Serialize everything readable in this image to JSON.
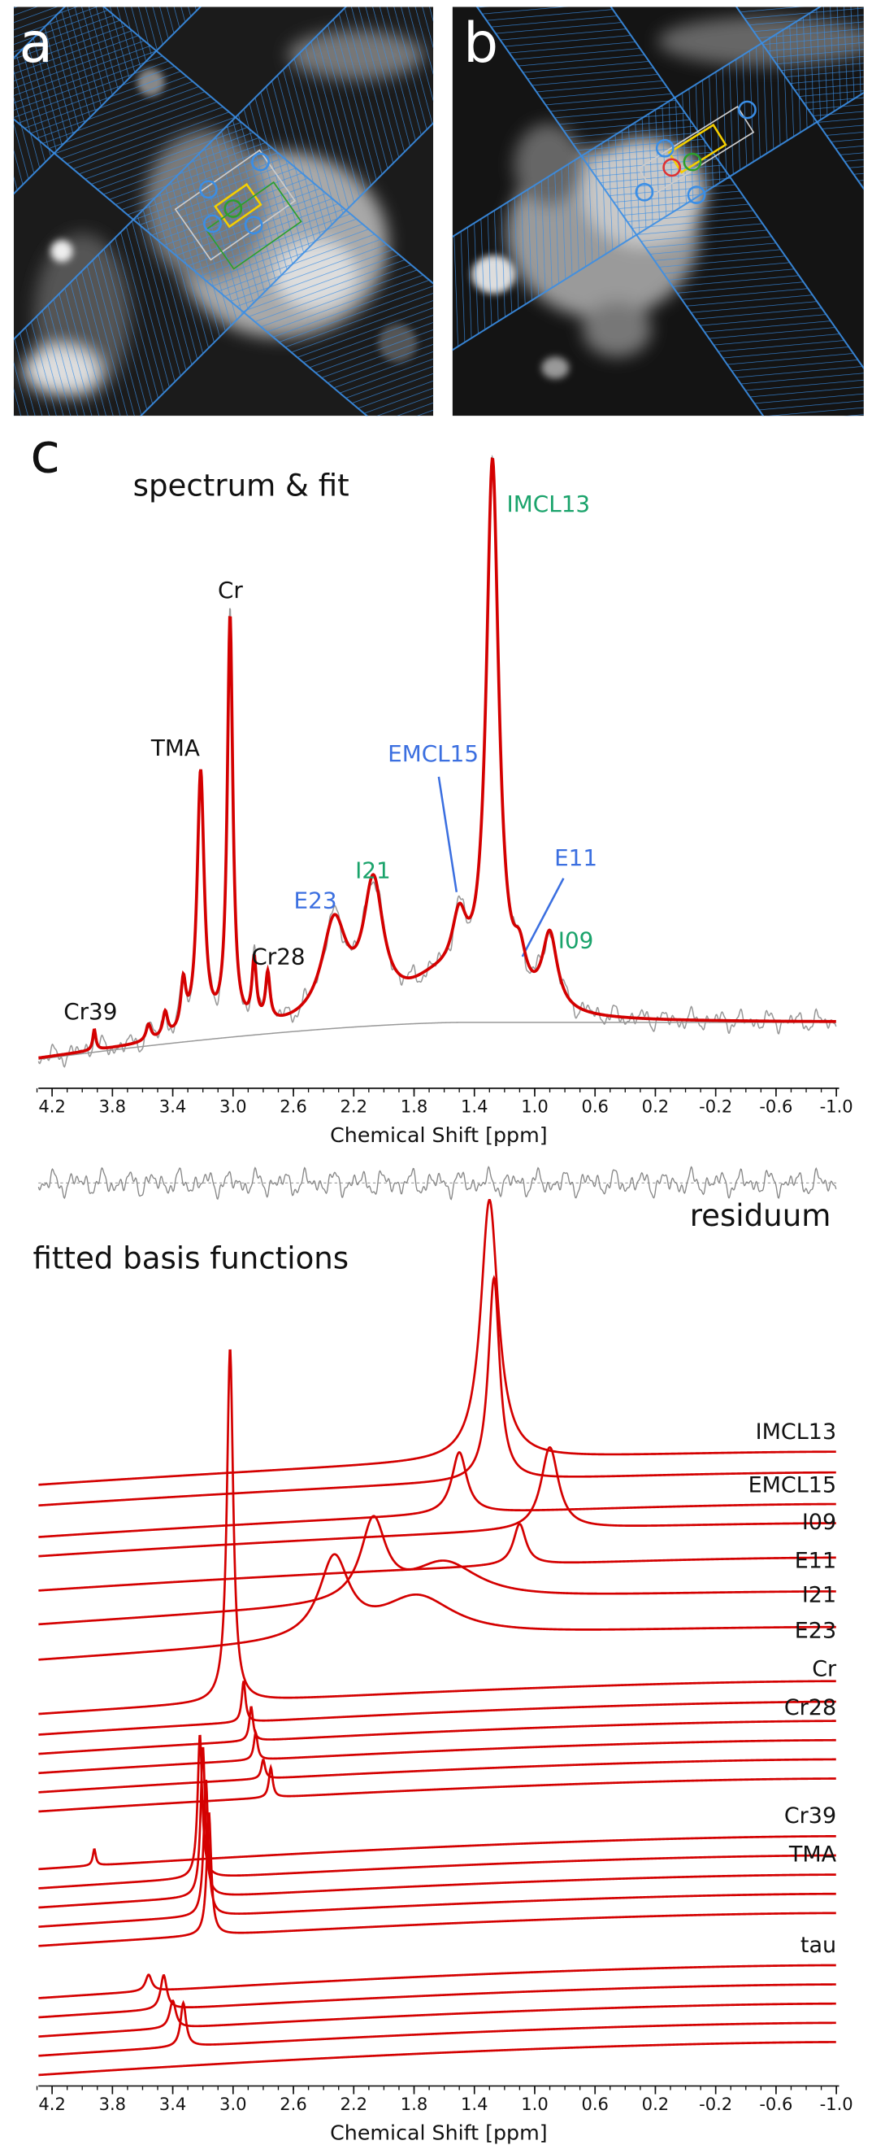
{
  "panels": {
    "a": "a",
    "b": "b",
    "c": "c"
  },
  "spectrum": {
    "title": "spectrum & fit",
    "peak_labels": [
      {
        "text": "IMCL13",
        "group": "imcl"
      },
      {
        "text": "Cr",
        "group": "other"
      },
      {
        "text": "TMA",
        "group": "other"
      },
      {
        "text": "EMCL15",
        "group": "emcl"
      },
      {
        "text": "E23",
        "group": "emcl"
      },
      {
        "text": "I21",
        "group": "imcl"
      },
      {
        "text": "E11",
        "group": "emcl"
      },
      {
        "text": "I09",
        "group": "imcl"
      },
      {
        "text": "Cr28",
        "group": "other"
      },
      {
        "text": "Cr39",
        "group": "other"
      }
    ],
    "group_colors": {
      "imcl": "#1aa36b",
      "emcl": "#3b6fe0",
      "other": "#111111"
    },
    "x_axis": {
      "label": "Chemical Shift [ppm]",
      "xlim": [
        4.2,
        -1.0
      ],
      "xticks": [
        4.2,
        3.8,
        3.4,
        {
          "value": 3,
          "label": "3.0"
        },
        2.6,
        2.2,
        1.8,
        1.4,
        {
          "value": 1,
          "label": "1.0"
        },
        0.6,
        0.2,
        -0.2,
        -0.6,
        {
          "value": -1,
          "label": "-1.0"
        }
      ]
    }
  },
  "residuum": "residuum",
  "basis": {
    "title": "fitted basis functions",
    "labels": [
      "IMCL13",
      "EMCL15",
      "I09",
      "E11",
      "I21",
      "E23",
      "Cr",
      "Cr28",
      "Cr39",
      "TMA",
      "tau"
    ],
    "x_axis": {
      "label": "Chemical Shift [ppm]",
      "xlim": [
        4.2,
        -1.0
      ],
      "xticks": [
        4.2,
        3.8,
        3.4,
        {
          "value": 3,
          "label": "3.0"
        },
        2.6,
        2.2,
        1.8,
        1.4,
        {
          "value": 1,
          "label": "1.0"
        },
        0.6,
        0.2,
        -0.2,
        -0.6,
        {
          "value": -1,
          "label": "-1.0"
        }
      ]
    }
  }
}
